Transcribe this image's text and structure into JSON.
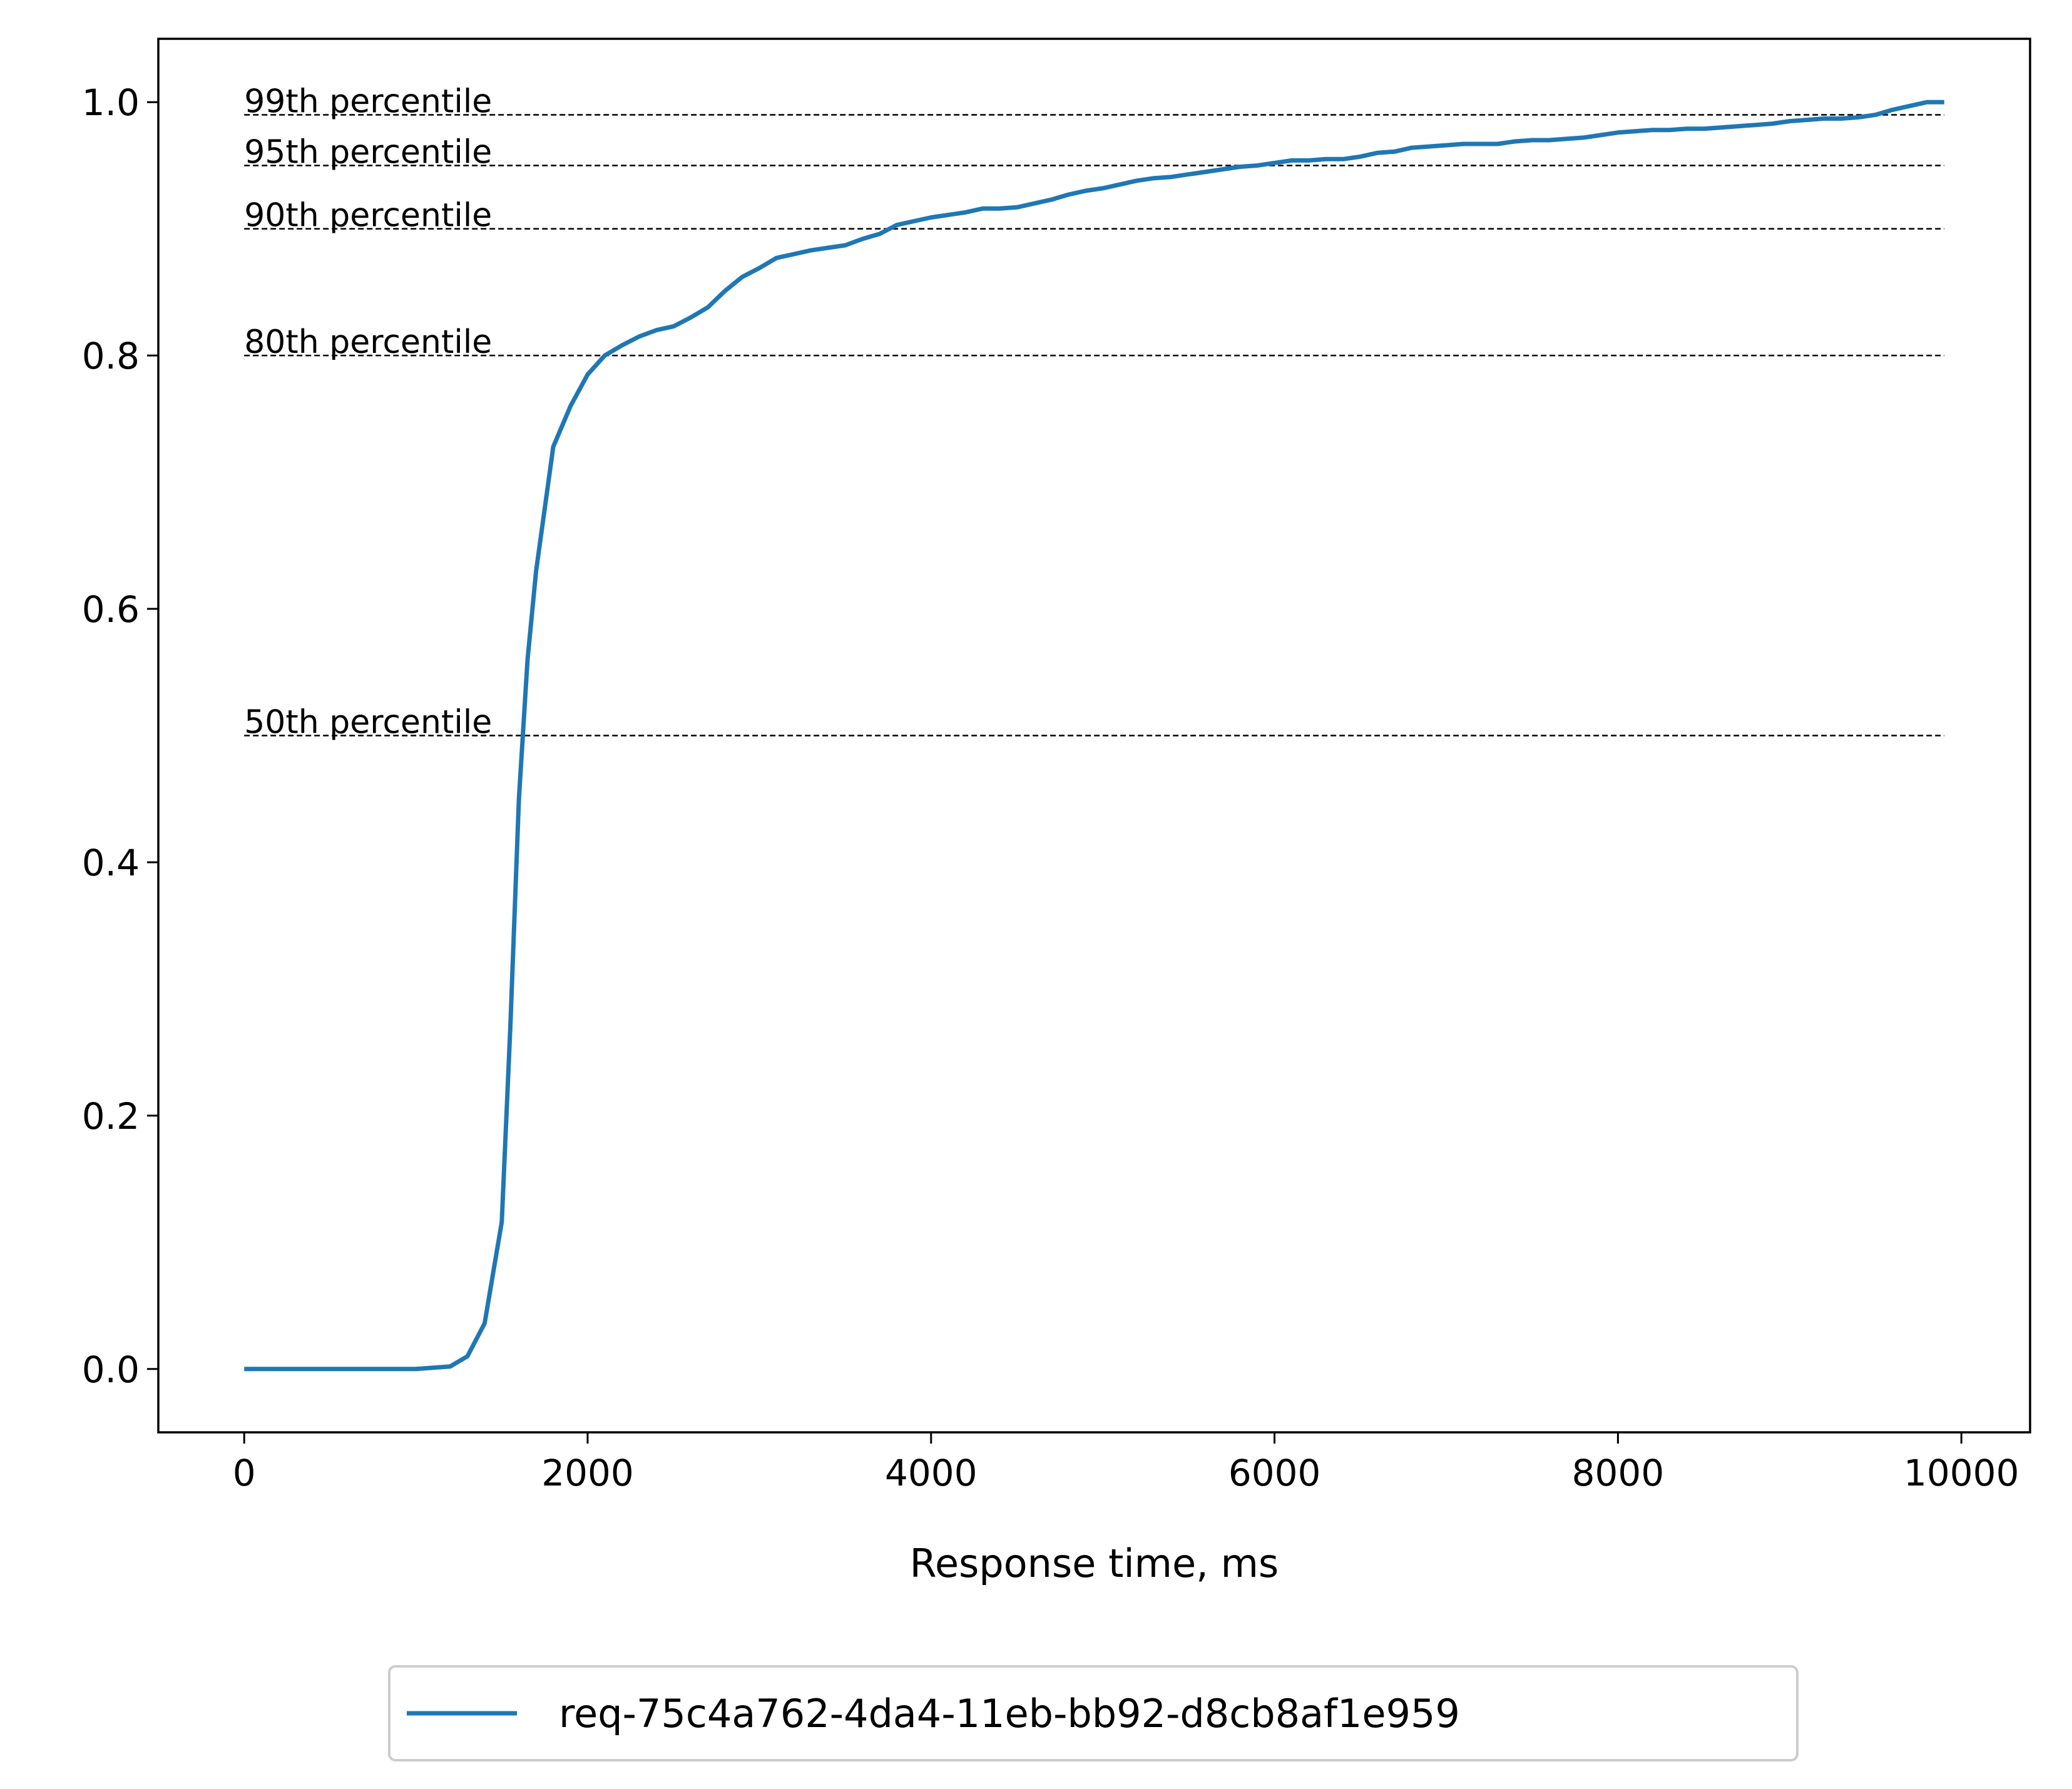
{
  "chart_data": {
    "type": "line",
    "title": "",
    "xlabel": "Response time, ms",
    "ylabel": "",
    "xlim": [
      -500,
      10400
    ],
    "ylim": [
      -0.05,
      1.05
    ],
    "xticks": [
      0,
      2000,
      4000,
      6000,
      8000,
      10000
    ],
    "xtick_labels": [
      "0",
      "2000",
      "4000",
      "6000",
      "8000",
      "10000"
    ],
    "yticks": [
      0.0,
      0.2,
      0.4,
      0.6,
      0.8,
      1.0
    ],
    "ytick_labels": [
      "0.0",
      "0.2",
      "0.4",
      "0.6",
      "0.8",
      "1.0"
    ],
    "grid": false,
    "legend_placement": "bottom-center",
    "series": [
      {
        "name": "req-75c4a762-4da4-11eb-bb92-d8cb8af1e959",
        "color": "#1f77b4",
        "x": [
          0,
          500,
          1000,
          1200,
          1300,
          1400,
          1500,
          1550,
          1600,
          1650,
          1700,
          1800,
          1900,
          2000,
          2100,
          2200,
          2300,
          2400,
          2500,
          2600,
          2700,
          2800,
          2900,
          3000,
          3100,
          3200,
          3300,
          3400,
          3500,
          3600,
          3700,
          3800,
          3900,
          4000,
          4100,
          4200,
          4300,
          4400,
          4500,
          4600,
          4700,
          4800,
          4900,
          5000,
          5100,
          5200,
          5300,
          5400,
          5500,
          5600,
          5700,
          5800,
          5900,
          6000,
          6100,
          6200,
          6300,
          6400,
          6500,
          6600,
          6700,
          6800,
          6900,
          7000,
          7100,
          7200,
          7300,
          7400,
          7500,
          7600,
          7700,
          7800,
          7900,
          8000,
          8100,
          8200,
          8300,
          8400,
          8500,
          8600,
          8700,
          8800,
          8900,
          9000,
          9100,
          9200,
          9300,
          9400,
          9500,
          9600,
          9700,
          9800,
          9900
        ],
        "y": [
          0.0,
          0.0,
          0.0,
          0.002,
          0.01,
          0.036,
          0.116,
          0.27,
          0.45,
          0.56,
          0.63,
          0.728,
          0.76,
          0.785,
          0.8,
          0.808,
          0.815,
          0.82,
          0.823,
          0.83,
          0.838,
          0.851,
          0.862,
          0.869,
          0.877,
          0.88,
          0.883,
          0.885,
          0.887,
          0.892,
          0.896,
          0.903,
          0.906,
          0.909,
          0.911,
          0.913,
          0.916,
          0.916,
          0.917,
          0.92,
          0.923,
          0.927,
          0.93,
          0.932,
          0.935,
          0.938,
          0.94,
          0.941,
          0.943,
          0.945,
          0.947,
          0.949,
          0.95,
          0.952,
          0.954,
          0.954,
          0.955,
          0.955,
          0.957,
          0.96,
          0.961,
          0.964,
          0.965,
          0.966,
          0.967,
          0.967,
          0.967,
          0.969,
          0.97,
          0.97,
          0.971,
          0.972,
          0.974,
          0.976,
          0.977,
          0.978,
          0.978,
          0.979,
          0.979,
          0.98,
          0.981,
          0.982,
          0.983,
          0.985,
          0.986,
          0.987,
          0.987,
          0.988,
          0.99,
          0.994,
          0.997,
          1.0,
          1.0
        ]
      }
    ],
    "reference_lines": [
      {
        "value": 0.99,
        "label": "99th percentile"
      },
      {
        "value": 0.95,
        "label": "95th percentile"
      },
      {
        "value": 0.9,
        "label": "90th percentile"
      },
      {
        "value": 0.8,
        "label": "80th percentile"
      },
      {
        "value": 0.5,
        "label": "50th percentile"
      }
    ],
    "reference_line_x_range": [
      0,
      9900
    ]
  }
}
